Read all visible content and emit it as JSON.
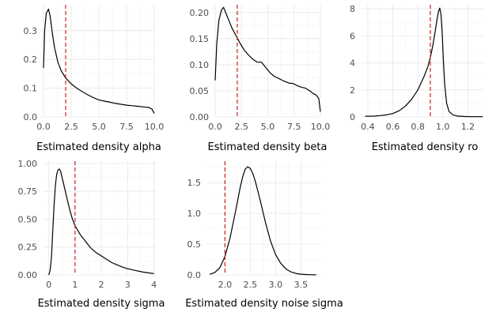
{
  "colors": {
    "curve": "#000000",
    "reference_line": "#cc1f1f",
    "grid": "#ebebeb",
    "tick_text": "#4d4d4d"
  },
  "chart_data": [
    {
      "type": "line",
      "xlabel": "Estimated density alpha",
      "xlim": [
        0,
        10
      ],
      "ylim": [
        0,
        0.39
      ],
      "xticks": [
        0,
        2.5,
        5,
        7.5,
        10
      ],
      "xtick_labels": [
        "0.0",
        "2.5",
        "5.0",
        "7.5",
        "10.0"
      ],
      "yticks": [
        0,
        0.1,
        0.2,
        0.3
      ],
      "ytick_labels": [
        "0.0",
        "0.1",
        "0.2",
        "0.3"
      ],
      "reference_x": 2.0,
      "x": [
        0,
        0.1,
        0.25,
        0.45,
        0.6,
        0.8,
        1.0,
        1.3,
        1.6,
        2.0,
        2.5,
        3.0,
        3.5,
        4.0,
        4.5,
        5.0,
        5.5,
        6.0,
        6.5,
        7.0,
        7.5,
        8.0,
        8.5,
        9.0,
        9.5,
        9.8,
        10.0
      ],
      "y": [
        0.17,
        0.3,
        0.36,
        0.375,
        0.35,
        0.29,
        0.24,
        0.19,
        0.16,
        0.135,
        0.115,
        0.1,
        0.088,
        0.077,
        0.067,
        0.059,
        0.055,
        0.051,
        0.047,
        0.044,
        0.041,
        0.039,
        0.037,
        0.035,
        0.033,
        0.027,
        0.012
      ]
    },
    {
      "type": "line",
      "xlabel": "Estimated density beta",
      "xlim": [
        0,
        10
      ],
      "ylim": [
        0,
        0.215
      ],
      "xticks": [
        0,
        2.5,
        5,
        7.5,
        10
      ],
      "xtick_labels": [
        "0.0",
        "2.5",
        "5.0",
        "7.5",
        "10.0"
      ],
      "yticks": [
        0,
        0.05,
        0.1,
        0.15,
        0.2
      ],
      "ytick_labels": [
        "0.00",
        "0.05",
        "0.10",
        "0.15",
        "0.20"
      ],
      "reference_x": 2.1,
      "x": [
        0,
        0.15,
        0.35,
        0.6,
        0.8,
        1.0,
        1.3,
        1.6,
        2.0,
        2.4,
        2.8,
        3.2,
        3.6,
        4.0,
        4.4,
        4.8,
        5.2,
        5.6,
        6.0,
        6.5,
        7.0,
        7.4,
        7.8,
        8.2,
        8.6,
        9.0,
        9.3,
        9.6,
        9.85,
        10.0
      ],
      "y": [
        0.07,
        0.14,
        0.185,
        0.205,
        0.21,
        0.2,
        0.185,
        0.17,
        0.155,
        0.14,
        0.127,
        0.118,
        0.11,
        0.105,
        0.105,
        0.095,
        0.085,
        0.078,
        0.074,
        0.069,
        0.065,
        0.064,
        0.06,
        0.057,
        0.055,
        0.05,
        0.045,
        0.042,
        0.035,
        0.01
      ]
    },
    {
      "type": "line",
      "xlabel": "Estimated density ro",
      "xlim": [
        0.35,
        1.33
      ],
      "ylim": [
        0,
        8.3
      ],
      "xticks": [
        0.4,
        0.6,
        0.8,
        1.0,
        1.2
      ],
      "xtick_labels": [
        "0.4",
        "0.6",
        "0.8",
        "1.0",
        "1.2"
      ],
      "yticks": [
        0,
        2,
        4,
        6,
        8
      ],
      "ytick_labels": [
        "0",
        "2",
        "4",
        "6",
        "8"
      ],
      "reference_x": 0.9,
      "x": [
        0.38,
        0.45,
        0.5,
        0.55,
        0.6,
        0.65,
        0.7,
        0.75,
        0.8,
        0.85,
        0.88,
        0.9,
        0.92,
        0.94,
        0.955,
        0.965,
        0.975,
        0.985,
        0.995,
        1.005,
        1.015,
        1.03,
        1.05,
        1.08,
        1.12,
        1.18,
        1.25,
        1.32
      ],
      "y": [
        0.05,
        0.06,
        0.1,
        0.15,
        0.25,
        0.45,
        0.8,
        1.3,
        2.0,
        3.0,
        3.7,
        4.4,
        5.3,
        6.4,
        7.3,
        7.8,
        8.05,
        7.6,
        6.2,
        4.0,
        2.4,
        1.0,
        0.4,
        0.15,
        0.06,
        0.03,
        0.02,
        0.02
      ]
    },
    {
      "type": "line",
      "xlabel": "Estimated density sigma",
      "xlim": [
        -0.2,
        4.1
      ],
      "ylim": [
        0,
        1.02
      ],
      "xticks": [
        0,
        1,
        2,
        3,
        4
      ],
      "xtick_labels": [
        "0",
        "1",
        "2",
        "3",
        "4"
      ],
      "yticks": [
        0,
        0.25,
        0.5,
        0.75,
        1.0
      ],
      "ytick_labels": [
        "0.00",
        "0.25",
        "0.50",
        "0.75",
        "1.00"
      ],
      "reference_x": 1.0,
      "x": [
        0.0,
        0.05,
        0.1,
        0.15,
        0.2,
        0.25,
        0.3,
        0.35,
        0.4,
        0.45,
        0.5,
        0.6,
        0.7,
        0.8,
        0.9,
        1.0,
        1.2,
        1.4,
        1.6,
        1.8,
        2.0,
        2.2,
        2.4,
        2.6,
        2.8,
        3.0,
        3.3,
        3.6,
        3.9,
        4.0
      ],
      "y": [
        0.0,
        0.04,
        0.15,
        0.38,
        0.62,
        0.8,
        0.9,
        0.94,
        0.95,
        0.93,
        0.88,
        0.78,
        0.68,
        0.58,
        0.5,
        0.44,
        0.36,
        0.3,
        0.24,
        0.2,
        0.17,
        0.14,
        0.11,
        0.09,
        0.07,
        0.055,
        0.04,
        0.025,
        0.015,
        0.012
      ]
    },
    {
      "type": "line",
      "xlabel": "Estimated density noise sigma",
      "xlim": [
        1.65,
        3.9
      ],
      "ylim": [
        0,
        1.85
      ],
      "xticks": [
        2.0,
        2.5,
        3.0,
        3.5
      ],
      "xtick_labels": [
        "2.0",
        "2.5",
        "3.0",
        "3.5"
      ],
      "yticks": [
        0,
        0.5,
        1.0,
        1.5
      ],
      "ytick_labels": [
        "0.0",
        "0.5",
        "1.0",
        "1.5"
      ],
      "reference_x": 2.0,
      "x": [
        1.7,
        1.8,
        1.9,
        2.0,
        2.1,
        2.2,
        2.3,
        2.35,
        2.4,
        2.45,
        2.5,
        2.55,
        2.6,
        2.7,
        2.8,
        2.9,
        3.0,
        3.1,
        3.2,
        3.3,
        3.4,
        3.5,
        3.6,
        3.7,
        3.8
      ],
      "y": [
        0.01,
        0.04,
        0.12,
        0.3,
        0.6,
        1.0,
        1.42,
        1.6,
        1.72,
        1.76,
        1.73,
        1.65,
        1.52,
        1.2,
        0.85,
        0.55,
        0.33,
        0.19,
        0.1,
        0.05,
        0.025,
        0.012,
        0.006,
        0.003,
        0.001
      ]
    }
  ]
}
